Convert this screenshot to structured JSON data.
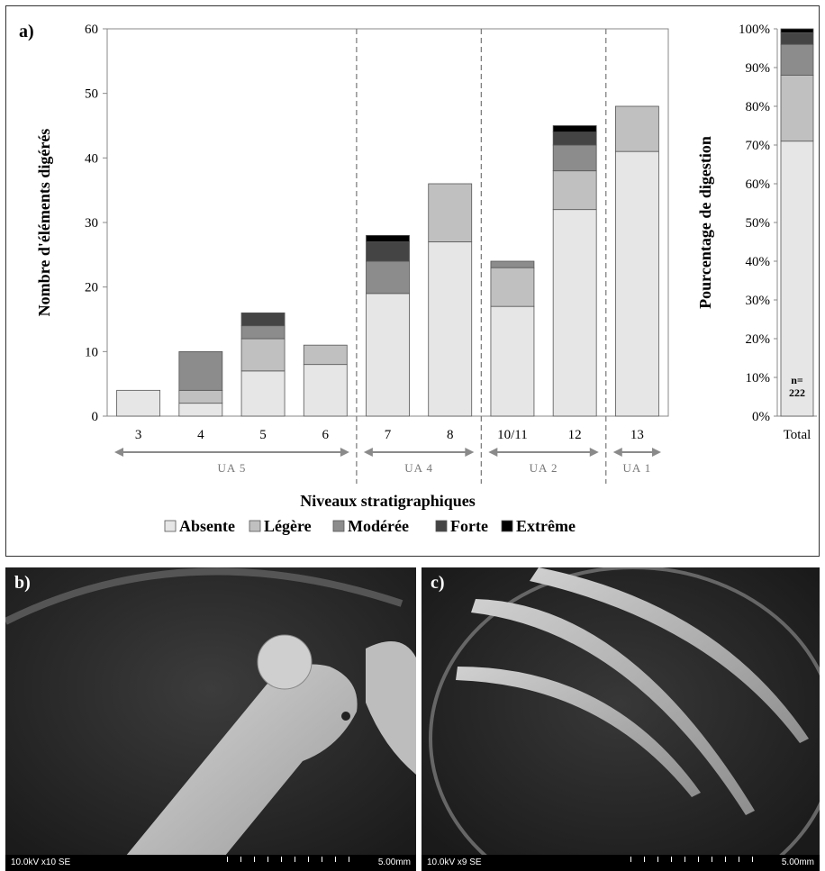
{
  "panel_a": {
    "letter": "a)"
  },
  "panel_b": {
    "letter": "b)",
    "sem_left": "10.0kV x10 SE",
    "sem_right": "5.00mm"
  },
  "panel_c": {
    "letter": "c)",
    "sem_left": "10.0kV x9 SE",
    "sem_right": "5.00mm"
  },
  "legend": [
    {
      "name": "Absente",
      "color": "#e6e6e6"
    },
    {
      "name": "Légère",
      "color": "#c0c0c0"
    },
    {
      "name": "Modérée",
      "color": "#8c8c8c"
    },
    {
      "name": "Forte",
      "color": "#444444"
    },
    {
      "name": "Extrême",
      "color": "#000000"
    }
  ],
  "colors": {
    "border": "#333333",
    "axis": "#888888",
    "dash": "#777777"
  },
  "chart_data": [
    {
      "type": "bar",
      "stacked": true,
      "xlabel": "Niveaux stratigraphiques",
      "ylabel": "Nombre d'éléments digérés",
      "ylim": [
        0,
        60
      ],
      "yticks": [
        0,
        10,
        20,
        30,
        40,
        50,
        60
      ],
      "categories": [
        "3",
        "4",
        "5",
        "6",
        "7",
        "8",
        "10/11",
        "12",
        "13"
      ],
      "series": [
        {
          "name": "Absente",
          "values": [
            4,
            2,
            7,
            8,
            19,
            27,
            17,
            32,
            41
          ]
        },
        {
          "name": "Légère",
          "values": [
            0,
            2,
            5,
            3,
            0,
            9,
            6,
            6,
            7
          ]
        },
        {
          "name": "Modérée",
          "values": [
            0,
            6,
            2,
            0,
            5,
            0,
            1,
            4,
            0
          ]
        },
        {
          "name": "Forte",
          "values": [
            0,
            0,
            2,
            0,
            3,
            0,
            0,
            2,
            0
          ]
        },
        {
          "name": "Extrême",
          "values": [
            0,
            0,
            0,
            0,
            1,
            0,
            0,
            1,
            0
          ]
        }
      ],
      "groups": [
        {
          "label": "UA 5",
          "from": "3",
          "to": "6"
        },
        {
          "label": "UA 4",
          "from": "7",
          "to": "8"
        },
        {
          "label": "UA 2",
          "from": "10/11",
          "to": "12"
        },
        {
          "label": "UA 1",
          "from": "13",
          "to": "13"
        }
      ],
      "dividers_after": [
        "6",
        "8",
        "12"
      ],
      "grid": false
    },
    {
      "type": "bar",
      "stacked": true,
      "ylabel": "Pourcentage de digestion",
      "ylim": [
        0,
        100
      ],
      "yticks": [
        "0%",
        "10%",
        "20%",
        "30%",
        "40%",
        "50%",
        "60%",
        "70%",
        "80%",
        "90%",
        "100%"
      ],
      "categories": [
        "Total"
      ],
      "series": [
        {
          "name": "Absente",
          "values": [
            71
          ]
        },
        {
          "name": "Légère",
          "values": [
            17
          ]
        },
        {
          "name": "Modérée",
          "values": [
            8
          ]
        },
        {
          "name": "Forte",
          "values": [
            3
          ]
        },
        {
          "name": "Extrême",
          "values": [
            1
          ]
        }
      ],
      "annotation": "n=\n222"
    }
  ]
}
